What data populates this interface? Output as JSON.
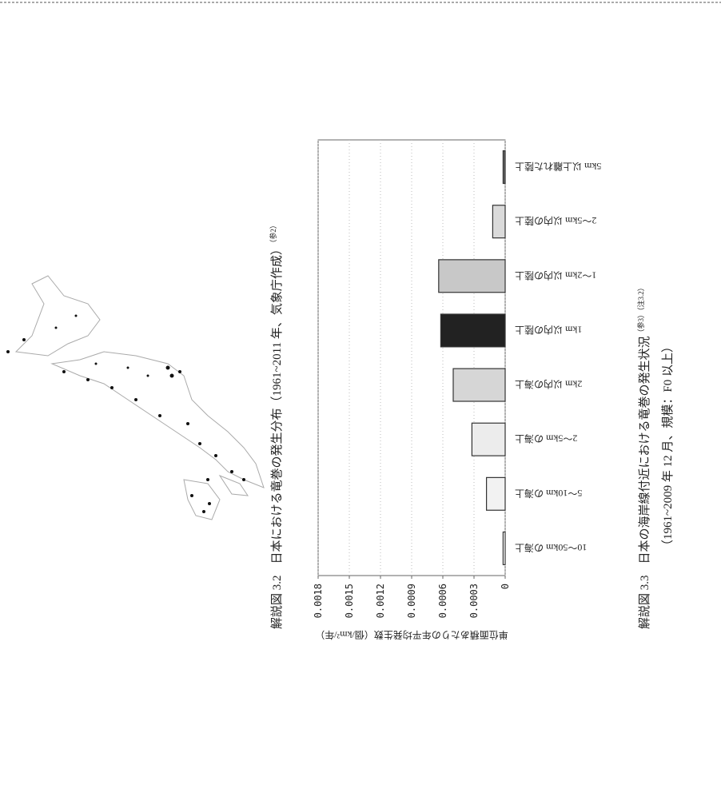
{
  "figure_3_2": {
    "number": "解説図 3.2",
    "title": "日本における竜巻の発生分布（1961~2011 年、気象庁作成）",
    "note": "（参2）"
  },
  "figure_3_3": {
    "number": "解説図 3.3",
    "title": "日本の海岸線付近における竜巻の発生状況",
    "note": "（参3）（注3.2）",
    "subtitle": "（1961~2009 年 12 月、規模：F0 以上）"
  },
  "chart_data": {
    "type": "bar",
    "y_label": "単位面積あたりの年平均発生数（個/km²/年）",
    "categories": [
      "10～50km の海上",
      "5～10km の海上",
      "2～5km の海上",
      "2km 以内の海上",
      "1km 以内の陸上",
      "1～2km 以内の陸上",
      "2～5km 以内の陸上",
      "5km 以上離れた陸上"
    ],
    "values": [
      2e-05,
      0.00018,
      0.00032,
      0.0005,
      0.00062,
      0.00064,
      0.00012,
      2e-05
    ],
    "colors": [
      "#ffffff",
      "#f2f2f2",
      "#ececec",
      "#d6d6d6",
      "#222222",
      "#c8c8c8",
      "#dadada",
      "#666666"
    ],
    "ylim": [
      0,
      0.0018
    ],
    "yticks": [
      0,
      0.0003,
      0.0006,
      0.0009,
      0.0012,
      0.0015,
      0.0018
    ],
    "grid": true
  }
}
